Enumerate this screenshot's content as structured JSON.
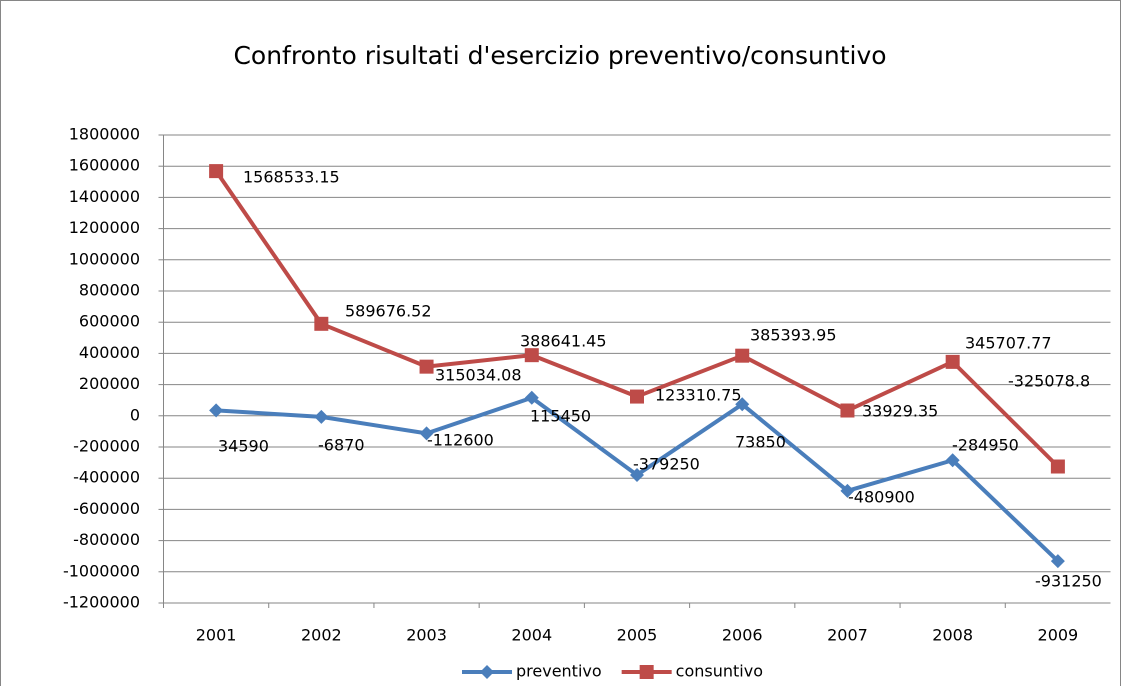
{
  "chart_data": {
    "type": "line",
    "title": "Confronto risultati d'esercizio preventivo/consuntivo",
    "categories": [
      "2001",
      "2002",
      "2003",
      "2004",
      "2005",
      "2006",
      "2007",
      "2008",
      "2009"
    ],
    "series": [
      {
        "name": "preventivo",
        "color": "#4a7ebb",
        "marker": "diamond",
        "values": [
          34590,
          -6870,
          -112600,
          115450,
          -379250,
          73850,
          -480900,
          -284950,
          -931250
        ]
      },
      {
        "name": "consuntivo",
        "color": "#be4b48",
        "marker": "square",
        "values": [
          1568533.15,
          589676.52,
          315034.08,
          388641.45,
          123310.75,
          385393.95,
          33929.35,
          345707.77,
          -325078.8
        ]
      }
    ],
    "ylim": [
      -1200000,
      1800000
    ],
    "yticks": [
      -1200000,
      -1000000,
      -800000,
      -600000,
      -400000,
      -200000,
      0,
      200000,
      400000,
      600000,
      800000,
      1000000,
      1200000,
      1400000,
      1600000,
      1800000
    ],
    "grid": true,
    "legend": "bottom"
  }
}
